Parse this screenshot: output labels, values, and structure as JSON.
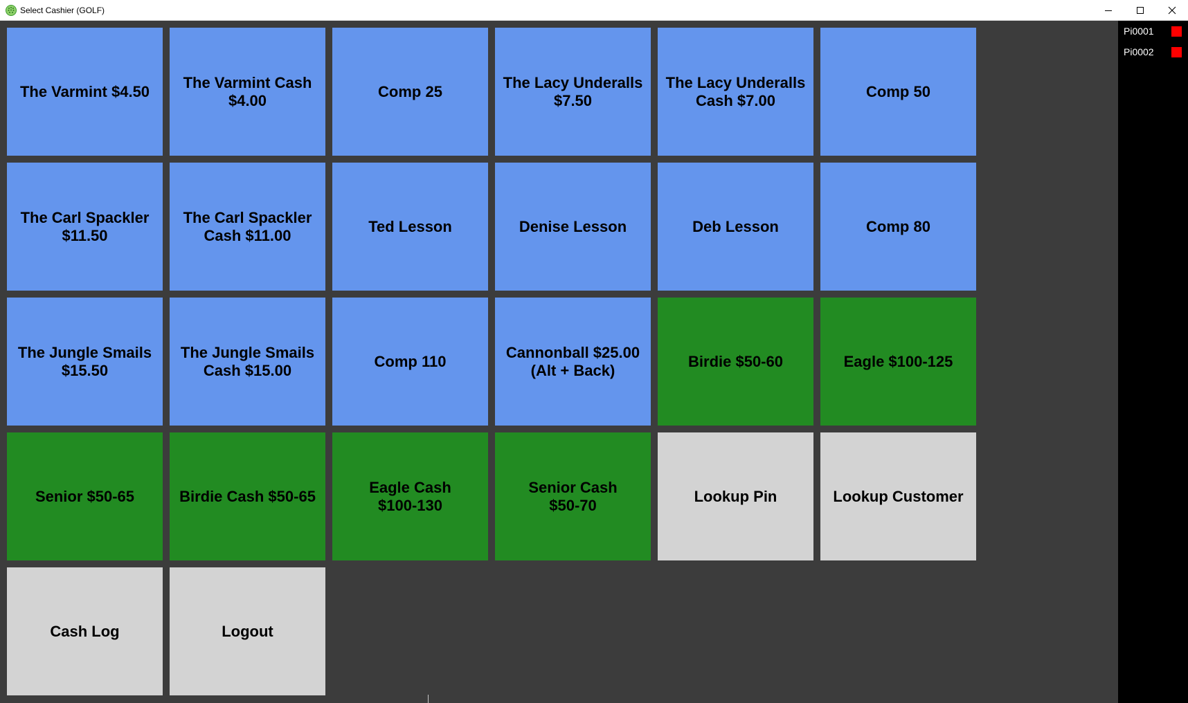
{
  "window": {
    "title": "Select Cashier (GOLF)",
    "icon": "golf-ball-icon",
    "controls": {
      "minimize": "minimize-icon",
      "maximize": "maximize-icon",
      "close": "close-icon"
    }
  },
  "colors": {
    "blue": "#6495ed",
    "green": "#228b22",
    "gray": "#d3d3d3",
    "background": "#3c3c3c",
    "status_red": "#ff0000"
  },
  "tiles": [
    {
      "lines": [
        "The Varmint $4.50"
      ],
      "color": "blue"
    },
    {
      "lines": [
        "The Varmint Cash",
        "$4.00"
      ],
      "color": "blue"
    },
    {
      "lines": [
        "Comp 25"
      ],
      "color": "blue"
    },
    {
      "lines": [
        "The Lacy Underalls",
        "$7.50"
      ],
      "color": "blue"
    },
    {
      "lines": [
        "The Lacy Underalls",
        "Cash $7.00"
      ],
      "color": "blue"
    },
    {
      "lines": [
        "Comp 50"
      ],
      "color": "blue"
    },
    {
      "lines": [
        "The Carl Spackler",
        "$11.50"
      ],
      "color": "blue"
    },
    {
      "lines": [
        "The Carl Spackler",
        "Cash $11.00"
      ],
      "color": "blue"
    },
    {
      "lines": [
        "Ted Lesson"
      ],
      "color": "blue"
    },
    {
      "lines": [
        "Denise Lesson"
      ],
      "color": "blue"
    },
    {
      "lines": [
        "Deb Lesson"
      ],
      "color": "blue"
    },
    {
      "lines": [
        "Comp 80"
      ],
      "color": "blue"
    },
    {
      "lines": [
        "The Jungle Smails",
        "$15.50"
      ],
      "color": "blue"
    },
    {
      "lines": [
        "The Jungle Smails",
        "Cash $15.00"
      ],
      "color": "blue"
    },
    {
      "lines": [
        "Comp 110"
      ],
      "color": "blue"
    },
    {
      "lines": [
        "Cannonball $25.00",
        "(Alt + Back)"
      ],
      "color": "blue"
    },
    {
      "lines": [
        "Birdie $50-60"
      ],
      "color": "green"
    },
    {
      "lines": [
        "Eagle $100-125"
      ],
      "color": "green"
    },
    {
      "lines": [
        "Senior $50-65"
      ],
      "color": "green"
    },
    {
      "lines": [
        "Birdie Cash $50-65"
      ],
      "color": "green"
    },
    {
      "lines": [
        "Eagle Cash",
        "$100-130"
      ],
      "color": "green"
    },
    {
      "lines": [
        "Senior Cash",
        "$50-70"
      ],
      "color": "green"
    },
    {
      "lines": [
        "Lookup Pin"
      ],
      "color": "gray"
    },
    {
      "lines": [
        "Lookup Customer"
      ],
      "color": "gray"
    },
    {
      "lines": [
        "Cash Log"
      ],
      "color": "gray"
    },
    {
      "lines": [
        "Logout"
      ],
      "color": "gray"
    }
  ],
  "printers": [
    {
      "label": "Pi0001",
      "status_color": "#ff0000"
    },
    {
      "label": "Pi0002",
      "status_color": "#ff0000"
    }
  ]
}
